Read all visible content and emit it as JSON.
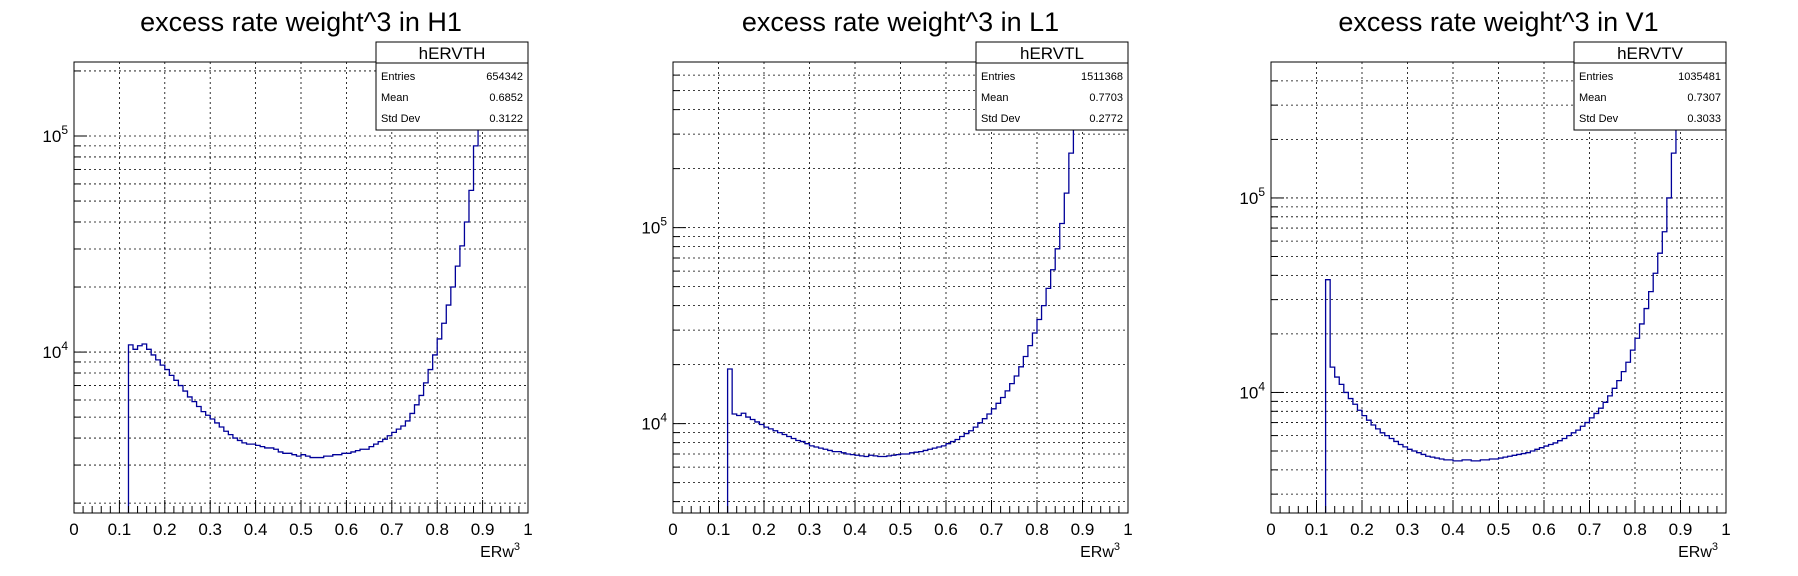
{
  "chart_data": [
    {
      "type": "histogram",
      "title": "excess rate weight^3 in H1",
      "xlabel": "ERw",
      "xlabel_superscript": "3",
      "ylabel": "",
      "xlim": [
        0,
        1
      ],
      "ylim": [
        1800,
        220000
      ],
      "y_scale": "log",
      "grid": true,
      "x_ticks": [
        "0",
        "0.1",
        "0.2",
        "0.3",
        "0.4",
        "0.5",
        "0.6",
        "0.7",
        "0.8",
        "0.9",
        "1"
      ],
      "y_ticks": [
        {
          "base": "10",
          "exp": "4",
          "value": 10000
        },
        {
          "base": "10",
          "exp": "5",
          "value": 100000
        }
      ],
      "stats": {
        "name": "hERVTH",
        "rows": [
          {
            "label": "Entries",
            "value": "654342"
          },
          {
            "label": "Mean",
            "value": "0.6852"
          },
          {
            "label": "Std Dev",
            "value": "0.3122"
          }
        ]
      },
      "bins": 100,
      "first_bin": 0.12,
      "values": [
        10800,
        10300,
        10700,
        10900,
        10300,
        9700,
        9200,
        8700,
        8300,
        7800,
        7400,
        7000,
        6600,
        6200,
        5900,
        5600,
        5300,
        5100,
        4900,
        4700,
        4500,
        4300,
        4150,
        4000,
        3900,
        3800,
        3750,
        3750,
        3700,
        3650,
        3600,
        3600,
        3550,
        3450,
        3400,
        3400,
        3350,
        3300,
        3350,
        3300,
        3250,
        3250,
        3250,
        3300,
        3300,
        3350,
        3350,
        3400,
        3400,
        3450,
        3500,
        3550,
        3550,
        3650,
        3750,
        3850,
        3950,
        4100,
        4250,
        4400,
        4550,
        4800,
        5200,
        5700,
        6300,
        7200,
        8300,
        9700,
        11500,
        13600,
        16500,
        20000,
        25000,
        31000,
        40000,
        56000,
        90000,
        210000
      ]
    },
    {
      "type": "histogram",
      "title": "excess rate weight^3 in L1",
      "xlabel": "ERw",
      "xlabel_superscript": "3",
      "ylabel": "",
      "xlim": [
        0,
        1
      ],
      "ylim": [
        3500,
        700000
      ],
      "y_scale": "log",
      "grid": true,
      "x_ticks": [
        "0",
        "0.1",
        "0.2",
        "0.3",
        "0.4",
        "0.5",
        "0.6",
        "0.7",
        "0.8",
        "0.9",
        "1"
      ],
      "y_ticks": [
        {
          "base": "10",
          "exp": "4",
          "value": 10000
        },
        {
          "base": "10",
          "exp": "5",
          "value": 100000
        }
      ],
      "stats": {
        "name": "hERVTL",
        "rows": [
          {
            "label": "Entries",
            "value": "1511368"
          },
          {
            "label": "Mean",
            "value": "0.7703"
          },
          {
            "label": "Std Dev",
            "value": "0.2772"
          }
        ]
      },
      "bins": 100,
      "first_bin": 0.12,
      "values": [
        19000,
        11200,
        11000,
        11300,
        10800,
        10500,
        10200,
        9900,
        9600,
        9400,
        9200,
        9000,
        8800,
        8600,
        8400,
        8200,
        8100,
        7900,
        7700,
        7600,
        7500,
        7400,
        7300,
        7200,
        7200,
        7100,
        7000,
        6950,
        6900,
        6850,
        6800,
        6900,
        6850,
        6800,
        6800,
        6850,
        6900,
        6950,
        7000,
        7000,
        7100,
        7150,
        7200,
        7300,
        7400,
        7500,
        7600,
        7700,
        7900,
        8100,
        8300,
        8600,
        8900,
        9200,
        9600,
        10100,
        10600,
        11200,
        11900,
        12700,
        13600,
        14700,
        16000,
        17500,
        19500,
        22000,
        25000,
        29000,
        34000,
        40000,
        49000,
        61000,
        78000,
        105000,
        150000,
        240000,
        420000,
        650000
      ]
    },
    {
      "type": "histogram",
      "title": "excess rate weight^3 in V1",
      "xlabel": "ERw",
      "xlabel_superscript": "3",
      "ylabel": "",
      "xlim": [
        0,
        1
      ],
      "ylim": [
        2400,
        500000
      ],
      "y_scale": "log",
      "grid": true,
      "x_ticks": [
        "0",
        "0.1",
        "0.2",
        "0.3",
        "0.4",
        "0.5",
        "0.6",
        "0.7",
        "0.8",
        "0.9",
        "1"
      ],
      "y_ticks": [
        {
          "base": "10",
          "exp": "4",
          "value": 10000
        },
        {
          "base": "10",
          "exp": "5",
          "value": 100000
        }
      ],
      "stats": {
        "name": "hERVTV",
        "rows": [
          {
            "label": "Entries",
            "value": "1035481"
          },
          {
            "label": "Mean",
            "value": "0.7307"
          },
          {
            "label": "Std Dev",
            "value": "0.3033"
          }
        ]
      },
      "bins": 100,
      "first_bin": 0.12,
      "values": [
        38000,
        13500,
        12000,
        11000,
        10000,
        9300,
        8700,
        8100,
        7600,
        7200,
        6800,
        6500,
        6200,
        6000,
        5800,
        5600,
        5400,
        5250,
        5100,
        5000,
        4900,
        4800,
        4700,
        4650,
        4600,
        4550,
        4500,
        4500,
        4450,
        4450,
        4500,
        4500,
        4450,
        4450,
        4500,
        4500,
        4550,
        4550,
        4600,
        4650,
        4700,
        4750,
        4800,
        4850,
        4900,
        5000,
        5100,
        5200,
        5300,
        5400,
        5500,
        5650,
        5800,
        6000,
        6200,
        6400,
        6700,
        7000,
        7400,
        7800,
        8300,
        8900,
        9600,
        10500,
        11500,
        12800,
        14300,
        16500,
        19000,
        22500,
        27000,
        33000,
        41000,
        52000,
        67000,
        100000,
        170000,
        450000
      ]
    }
  ]
}
